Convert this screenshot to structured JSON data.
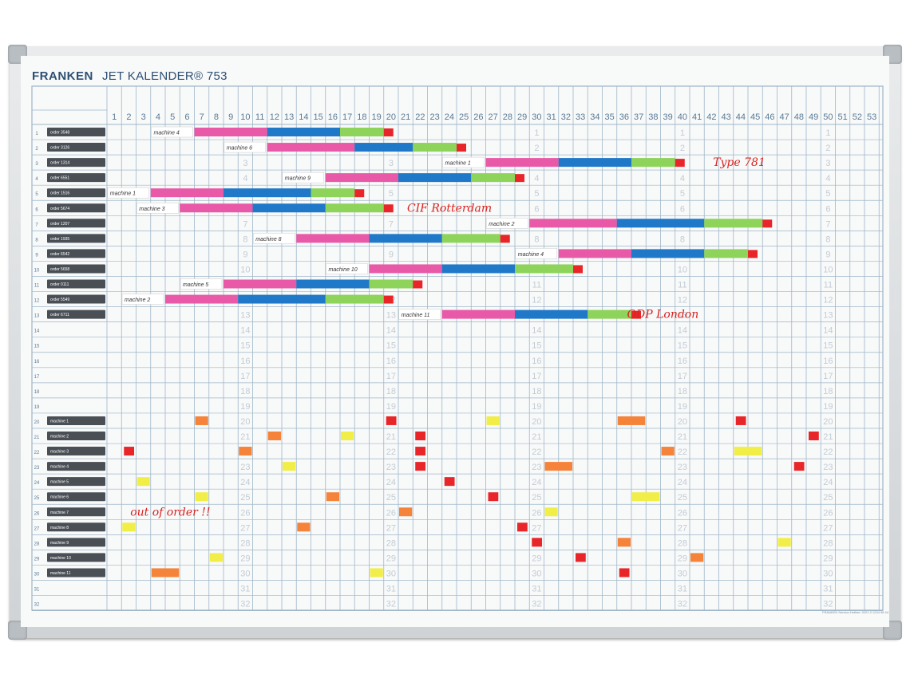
{
  "board": {
    "brand": "FRANKEN",
    "product": "JET KALENDER® 753",
    "footnote": "FRANKEN Service-Hotline: 0221 0 1234 98 44"
  },
  "columns": [
    "1",
    "2",
    "3",
    "4",
    "5",
    "6",
    "7",
    "8",
    "9",
    "10",
    "11",
    "12",
    "13",
    "14",
    "15",
    "16",
    "17",
    "18",
    "19",
    "20",
    "21",
    "22",
    "23",
    "24",
    "25",
    "26",
    "27",
    "28",
    "29",
    "30",
    "31",
    "32",
    "33",
    "34",
    "35",
    "36",
    "37",
    "38",
    "39",
    "40",
    "41",
    "42",
    "43",
    "44",
    "45",
    "46",
    "47",
    "48",
    "49",
    "50",
    "51",
    "52",
    "53"
  ],
  "rows": [
    "1",
    "2",
    "3",
    "4",
    "5",
    "6",
    "7",
    "8",
    "9",
    "10",
    "11",
    "12",
    "13",
    "14",
    "15",
    "16",
    "17",
    "18",
    "19",
    "20",
    "21",
    "22",
    "23",
    "24",
    "25",
    "26",
    "27",
    "28",
    "29",
    "30",
    "31",
    "32"
  ],
  "day_number_columns": [
    9,
    19,
    29,
    39,
    49
  ],
  "order_labels": [
    "order 3548",
    "order 3126",
    "order 1314",
    "order 6551",
    "order 1516",
    "order 5674",
    "order 1207",
    "order 1935",
    "order 6542",
    "order 5658",
    "order 0111",
    "order 5549",
    "order 6711"
  ],
  "machine_labels": [
    "machine 1",
    "machine 2",
    "machine 3",
    "machine 4",
    "machine 5",
    "machine 6",
    "machine 7",
    "machine 8",
    "machine 9",
    "machine 10",
    "machine 11"
  ],
  "machine_label_rows": [
    20,
    21,
    22,
    23,
    24,
    25,
    26,
    27,
    28,
    29,
    30
  ],
  "colors": {
    "pink": "#e85aa8",
    "blue": "#1f78c8",
    "green": "#8ed35a",
    "red": "#e8262a",
    "orange": "#f5833a",
    "yellow": "#f2ee48",
    "grid": "#9fb6c8",
    "text": "#5a7a96",
    "faint": "#c2ccd5",
    "ink": "#d8231f"
  },
  "tasks": [
    {
      "row": 1,
      "start": 7,
      "pink": 5,
      "blue": 5,
      "green": 3,
      "note": "machine 4"
    },
    {
      "row": 2,
      "start": 12,
      "pink": 6,
      "blue": 4,
      "green": 3,
      "note": "machine 6"
    },
    {
      "row": 3,
      "start": 27,
      "pink": 5,
      "blue": 5,
      "green": 3,
      "note": "machine 1"
    },
    {
      "row": 4,
      "start": 16,
      "pink": 5,
      "blue": 5,
      "green": 3,
      "note": "machine 9"
    },
    {
      "row": 5,
      "start": 4,
      "pink": 5,
      "blue": 6,
      "green": 3,
      "note": "machine 1"
    },
    {
      "row": 6,
      "start": 6,
      "pink": 5,
      "blue": 5,
      "green": 4,
      "note": "machine 3"
    },
    {
      "row": 7,
      "start": 30,
      "pink": 6,
      "blue": 6,
      "green": 4,
      "note": "machine 2"
    },
    {
      "row": 8,
      "start": 14,
      "pink": 5,
      "blue": 5,
      "green": 4,
      "note": "machine 8"
    },
    {
      "row": 9,
      "start": 32,
      "pink": 5,
      "blue": 5,
      "green": 3,
      "note": "machine 4"
    },
    {
      "row": 10,
      "start": 19,
      "pink": 5,
      "blue": 5,
      "green": 4,
      "note": "machine 10"
    },
    {
      "row": 11,
      "start": 9,
      "pink": 5,
      "blue": 5,
      "green": 3,
      "note": "machine 5"
    },
    {
      "row": 12,
      "start": 5,
      "pink": 5,
      "blue": 6,
      "green": 4,
      "note": "machine 2"
    },
    {
      "row": 13,
      "start": 24,
      "pink": 5,
      "blue": 5,
      "green": 3,
      "note": "machine 11"
    }
  ],
  "handwritten_notes": [
    {
      "text": "Type 781",
      "col": 42.6,
      "row": 3
    },
    {
      "text": "CIF Rotterdam",
      "col": 21.6,
      "row": 6
    },
    {
      "text": "ODP London",
      "col": 36.7,
      "row": 13
    },
    {
      "text": "out of order !!",
      "col": 2.6,
      "row": 26
    }
  ],
  "markers": [
    {
      "color": "orange",
      "col": 7,
      "row": 20,
      "w": 1
    },
    {
      "color": "red",
      "col": 20,
      "row": 20,
      "w": 0.7
    },
    {
      "color": "yellow",
      "col": 27,
      "row": 20,
      "w": 1
    },
    {
      "color": "orange",
      "col": 36,
      "row": 20,
      "w": 2
    },
    {
      "color": "red",
      "col": 44,
      "row": 20,
      "w": 0.7
    },
    {
      "color": "orange",
      "col": 12,
      "row": 21,
      "w": 1
    },
    {
      "color": "yellow",
      "col": 17,
      "row": 21,
      "w": 1
    },
    {
      "color": "red",
      "col": 22,
      "row": 21,
      "w": 0.7
    },
    {
      "color": "red",
      "col": 49,
      "row": 21,
      "w": 0.7
    },
    {
      "color": "red",
      "col": 2,
      "row": 22,
      "w": 0.7
    },
    {
      "color": "orange",
      "col": 10,
      "row": 22,
      "w": 1
    },
    {
      "color": "red",
      "col": 22,
      "row": 22,
      "w": 0.7
    },
    {
      "color": "orange",
      "col": 39,
      "row": 22,
      "w": 1
    },
    {
      "color": "yellow",
      "col": 44,
      "row": 22,
      "w": 2
    },
    {
      "color": "yellow",
      "col": 13,
      "row": 23,
      "w": 1
    },
    {
      "color": "red",
      "col": 22,
      "row": 23,
      "w": 0.7
    },
    {
      "color": "orange",
      "col": 31,
      "row": 23,
      "w": 2
    },
    {
      "color": "red",
      "col": 48,
      "row": 23,
      "w": 0.7
    },
    {
      "color": "yellow",
      "col": 3,
      "row": 24,
      "w": 1
    },
    {
      "color": "red",
      "col": 24,
      "row": 24,
      "w": 0.7
    },
    {
      "color": "yellow",
      "col": 7,
      "row": 25,
      "w": 1
    },
    {
      "color": "orange",
      "col": 16,
      "row": 25,
      "w": 1
    },
    {
      "color": "red",
      "col": 27,
      "row": 25,
      "w": 0.7
    },
    {
      "color": "yellow",
      "col": 37,
      "row": 25,
      "w": 2
    },
    {
      "color": "orange",
      "col": 21,
      "row": 26,
      "w": 1
    },
    {
      "color": "yellow",
      "col": 31,
      "row": 26,
      "w": 1
    },
    {
      "color": "yellow",
      "col": 2,
      "row": 27,
      "w": 1
    },
    {
      "color": "orange",
      "col": 14,
      "row": 27,
      "w": 1
    },
    {
      "color": "red",
      "col": 29,
      "row": 27,
      "w": 0.7
    },
    {
      "color": "red",
      "col": 30,
      "row": 28,
      "w": 0.7
    },
    {
      "color": "orange",
      "col": 36,
      "row": 28,
      "w": 1
    },
    {
      "color": "yellow",
      "col": 47,
      "row": 28,
      "w": 1
    },
    {
      "color": "yellow",
      "col": 8,
      "row": 29,
      "w": 1
    },
    {
      "color": "red",
      "col": 33,
      "row": 29,
      "w": 0.7
    },
    {
      "color": "orange",
      "col": 41,
      "row": 29,
      "w": 1
    },
    {
      "color": "orange",
      "col": 4,
      "row": 30,
      "w": 2
    },
    {
      "color": "yellow",
      "col": 19,
      "row": 30,
      "w": 1
    },
    {
      "color": "red",
      "col": 36,
      "row": 30,
      "w": 0.7
    }
  ]
}
